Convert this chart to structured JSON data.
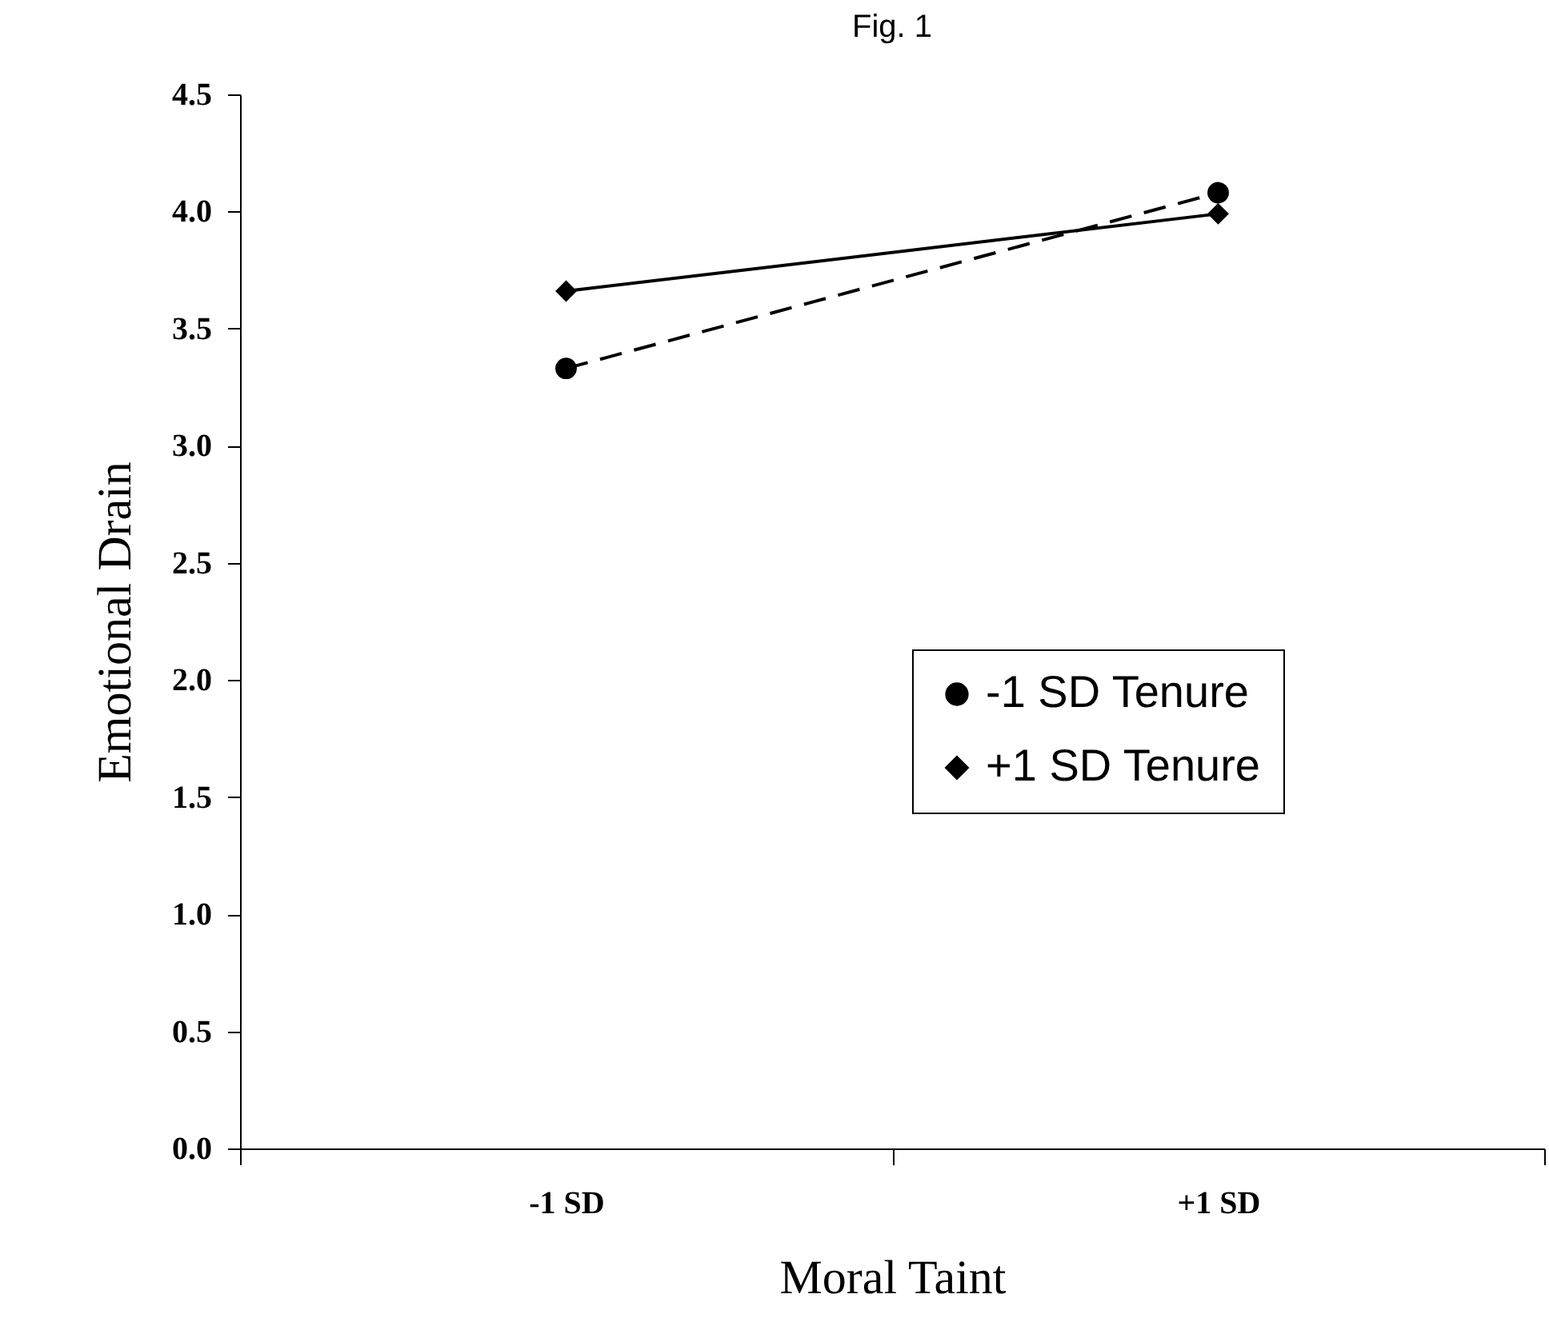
{
  "chart_data": {
    "type": "line",
    "title": "Fig. 1",
    "xlabel": "Moral Taint",
    "ylabel": "Emotional Drain",
    "categories": [
      "-1 SD",
      "+1 SD"
    ],
    "series": [
      {
        "name": "-1 SD Tenure",
        "color": "#000000",
        "marker": "circle",
        "line_style": "dashed",
        "values": [
          3.33,
          4.08
        ]
      },
      {
        "name": "+1 SD Tenure",
        "color": "#000000",
        "marker": "diamond",
        "line_style": "solid",
        "values": [
          3.66,
          3.99
        ]
      }
    ],
    "ylim": [
      0,
      4.5
    ],
    "yticks": [
      {
        "value": 0,
        "label": "0.0"
      },
      {
        "value": 0.5,
        "label": "0.5"
      },
      {
        "value": 1,
        "label": "1.0"
      },
      {
        "value": 1.5,
        "label": "1.5"
      },
      {
        "value": 2,
        "label": "2.0"
      },
      {
        "value": 2.5,
        "label": "2.5"
      },
      {
        "value": 3,
        "label": "3.0"
      },
      {
        "value": 3.5,
        "label": "3.5"
      },
      {
        "value": 4,
        "label": "4.0"
      },
      {
        "value": 4.5,
        "label": "4.5"
      }
    ],
    "grid": false,
    "legend": "right"
  }
}
